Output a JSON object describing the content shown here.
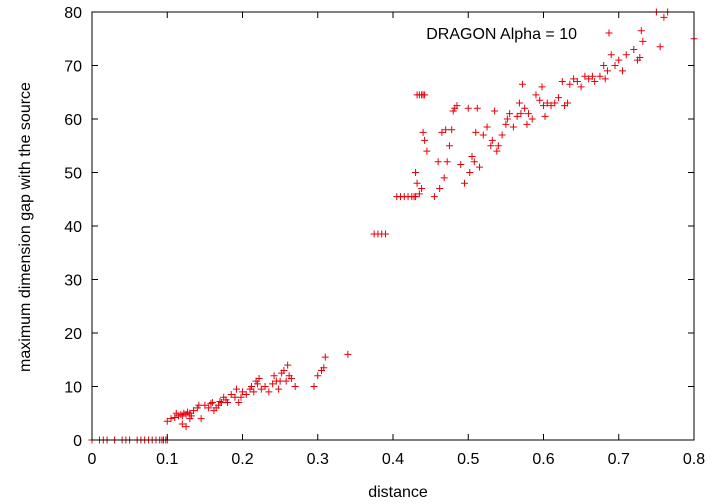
{
  "chart_data": {
    "type": "scatter",
    "xlabel": "distance",
    "ylabel": "maximum dimension gap with the source",
    "xlim": [
      0,
      0.8
    ],
    "ylim": [
      0,
      80
    ],
    "xticks": [
      0,
      0.1,
      0.2,
      0.3,
      0.4,
      0.5,
      0.6,
      0.7,
      0.8
    ],
    "yticks": [
      0,
      10,
      20,
      30,
      40,
      50,
      60,
      70,
      80
    ],
    "xtick_labels": [
      "0",
      "0.1",
      "0.2",
      "0.3",
      "0.4",
      "0.5",
      "0.6",
      "0.7",
      "0.8"
    ],
    "ytick_labels": [
      "0",
      "10",
      "20",
      "30",
      "40",
      "50",
      "60",
      "70",
      "80"
    ],
    "grid": false,
    "legend_position": "top-right",
    "marker": "plus",
    "colors": {
      "series": "#e8000b",
      "axis": "#000000"
    },
    "series": [
      {
        "name": "DRAGON Alpha = 10",
        "points": [
          [
            0.0,
            0
          ],
          [
            0.01,
            0
          ],
          [
            0.015,
            0
          ],
          [
            0.02,
            0
          ],
          [
            0.03,
            0
          ],
          [
            0.04,
            0
          ],
          [
            0.045,
            0
          ],
          [
            0.05,
            0
          ],
          [
            0.06,
            0
          ],
          [
            0.065,
            0
          ],
          [
            0.07,
            0
          ],
          [
            0.075,
            0
          ],
          [
            0.08,
            0
          ],
          [
            0.085,
            0
          ],
          [
            0.09,
            0
          ],
          [
            0.093,
            0
          ],
          [
            0.095,
            0
          ],
          [
            0.098,
            0
          ],
          [
            0.1,
            0
          ],
          [
            0.1,
            3.5
          ],
          [
            0.105,
            4
          ],
          [
            0.11,
            4.2
          ],
          [
            0.112,
            5
          ],
          [
            0.115,
            4.5
          ],
          [
            0.118,
            4.8
          ],
          [
            0.12,
            4.5
          ],
          [
            0.122,
            5
          ],
          [
            0.125,
            4.8
          ],
          [
            0.127,
            5.2
          ],
          [
            0.13,
            5
          ],
          [
            0.132,
            4.5
          ],
          [
            0.135,
            5.5
          ],
          [
            0.12,
            3
          ],
          [
            0.125,
            2.5
          ],
          [
            0.13,
            4
          ],
          [
            0.14,
            6
          ],
          [
            0.142,
            6.5
          ],
          [
            0.145,
            4
          ],
          [
            0.15,
            6.5
          ],
          [
            0.155,
            6
          ],
          [
            0.158,
            6.8
          ],
          [
            0.16,
            7
          ],
          [
            0.162,
            5.5
          ],
          [
            0.165,
            6
          ],
          [
            0.168,
            6.5
          ],
          [
            0.17,
            7.2
          ],
          [
            0.172,
            7
          ],
          [
            0.175,
            8
          ],
          [
            0.178,
            7.5
          ],
          [
            0.18,
            7
          ],
          [
            0.185,
            8.5
          ],
          [
            0.19,
            8
          ],
          [
            0.192,
            9.5
          ],
          [
            0.195,
            7
          ],
          [
            0.198,
            8
          ],
          [
            0.2,
            9
          ],
          [
            0.205,
            8.5
          ],
          [
            0.21,
            9.5
          ],
          [
            0.212,
            10
          ],
          [
            0.215,
            9
          ],
          [
            0.218,
            11
          ],
          [
            0.22,
            10.5
          ],
          [
            0.222,
            11.5
          ],
          [
            0.225,
            9.5
          ],
          [
            0.23,
            10
          ],
          [
            0.235,
            9
          ],
          [
            0.24,
            10.5
          ],
          [
            0.242,
            12
          ],
          [
            0.245,
            11
          ],
          [
            0.248,
            9.5
          ],
          [
            0.25,
            11
          ],
          [
            0.252,
            12.5
          ],
          [
            0.255,
            13
          ],
          [
            0.258,
            11
          ],
          [
            0.26,
            14
          ],
          [
            0.262,
            12
          ],
          [
            0.265,
            11.5
          ],
          [
            0.27,
            10
          ],
          [
            0.295,
            10
          ],
          [
            0.3,
            12
          ],
          [
            0.305,
            13
          ],
          [
            0.308,
            13.5
          ],
          [
            0.31,
            15.5
          ],
          [
            0.34,
            16
          ],
          [
            0.375,
            38.5
          ],
          [
            0.38,
            38.5
          ],
          [
            0.385,
            38.5
          ],
          [
            0.39,
            38.5
          ],
          [
            0.405,
            45.5
          ],
          [
            0.41,
            45.5
          ],
          [
            0.415,
            45.5
          ],
          [
            0.42,
            45.5
          ],
          [
            0.425,
            45.5
          ],
          [
            0.428,
            45.5
          ],
          [
            0.43,
            45.5
          ],
          [
            0.432,
            64.5
          ],
          [
            0.435,
            64.5
          ],
          [
            0.438,
            64.5
          ],
          [
            0.44,
            64.5
          ],
          [
            0.442,
            64.5
          ],
          [
            0.43,
            50
          ],
          [
            0.432,
            48
          ],
          [
            0.435,
            46
          ],
          [
            0.438,
            47
          ],
          [
            0.44,
            57.5
          ],
          [
            0.442,
            56
          ],
          [
            0.445,
            54
          ],
          [
            0.455,
            45.5
          ],
          [
            0.46,
            52
          ],
          [
            0.462,
            47
          ],
          [
            0.465,
            57.5
          ],
          [
            0.468,
            49
          ],
          [
            0.47,
            58
          ],
          [
            0.472,
            52
          ],
          [
            0.475,
            55
          ],
          [
            0.478,
            58
          ],
          [
            0.48,
            61.5
          ],
          [
            0.482,
            62
          ],
          [
            0.485,
            62.5
          ],
          [
            0.49,
            51.5
          ],
          [
            0.495,
            48
          ],
          [
            0.5,
            62
          ],
          [
            0.502,
            50
          ],
          [
            0.505,
            53
          ],
          [
            0.508,
            52
          ],
          [
            0.51,
            57.5
          ],
          [
            0.512,
            62
          ],
          [
            0.515,
            51
          ],
          [
            0.52,
            57
          ],
          [
            0.525,
            58.5
          ],
          [
            0.53,
            55
          ],
          [
            0.532,
            56
          ],
          [
            0.535,
            61.5
          ],
          [
            0.538,
            54
          ],
          [
            0.54,
            55
          ],
          [
            0.545,
            57
          ],
          [
            0.55,
            59
          ],
          [
            0.552,
            60
          ],
          [
            0.555,
            61
          ],
          [
            0.56,
            58.5
          ],
          [
            0.565,
            60.5
          ],
          [
            0.568,
            63
          ],
          [
            0.57,
            61
          ],
          [
            0.572,
            66.5
          ],
          [
            0.575,
            62
          ],
          [
            0.578,
            59
          ],
          [
            0.58,
            61
          ],
          [
            0.585,
            60
          ],
          [
            0.59,
            64.5
          ],
          [
            0.595,
            63.5
          ],
          [
            0.598,
            66
          ],
          [
            0.6,
            62.5
          ],
          [
            0.602,
            60.5
          ],
          [
            0.605,
            63
          ],
          [
            0.61,
            62.5
          ],
          [
            0.615,
            63
          ],
          [
            0.62,
            64
          ],
          [
            0.625,
            67
          ],
          [
            0.628,
            62.5
          ],
          [
            0.632,
            63
          ],
          [
            0.635,
            66.5
          ],
          [
            0.64,
            67.5
          ],
          [
            0.645,
            67
          ],
          [
            0.65,
            66
          ],
          [
            0.655,
            68
          ],
          [
            0.66,
            67.5
          ],
          [
            0.665,
            68
          ],
          [
            0.668,
            67
          ],
          [
            0.675,
            68
          ],
          [
            0.68,
            70
          ],
          [
            0.682,
            67.5
          ],
          [
            0.685,
            69
          ],
          [
            0.69,
            72
          ],
          [
            0.695,
            70
          ],
          [
            0.7,
            71
          ],
          [
            0.705,
            69
          ],
          [
            0.71,
            72
          ],
          [
            0.72,
            73
          ],
          [
            0.725,
            71
          ],
          [
            0.728,
            71.5
          ],
          [
            0.73,
            76.5
          ],
          [
            0.732,
            74.5
          ],
          [
            0.75,
            80
          ],
          [
            0.755,
            73.5
          ],
          [
            0.76,
            79
          ],
          [
            0.765,
            80
          ],
          [
            0.8,
            75
          ]
        ]
      }
    ]
  }
}
